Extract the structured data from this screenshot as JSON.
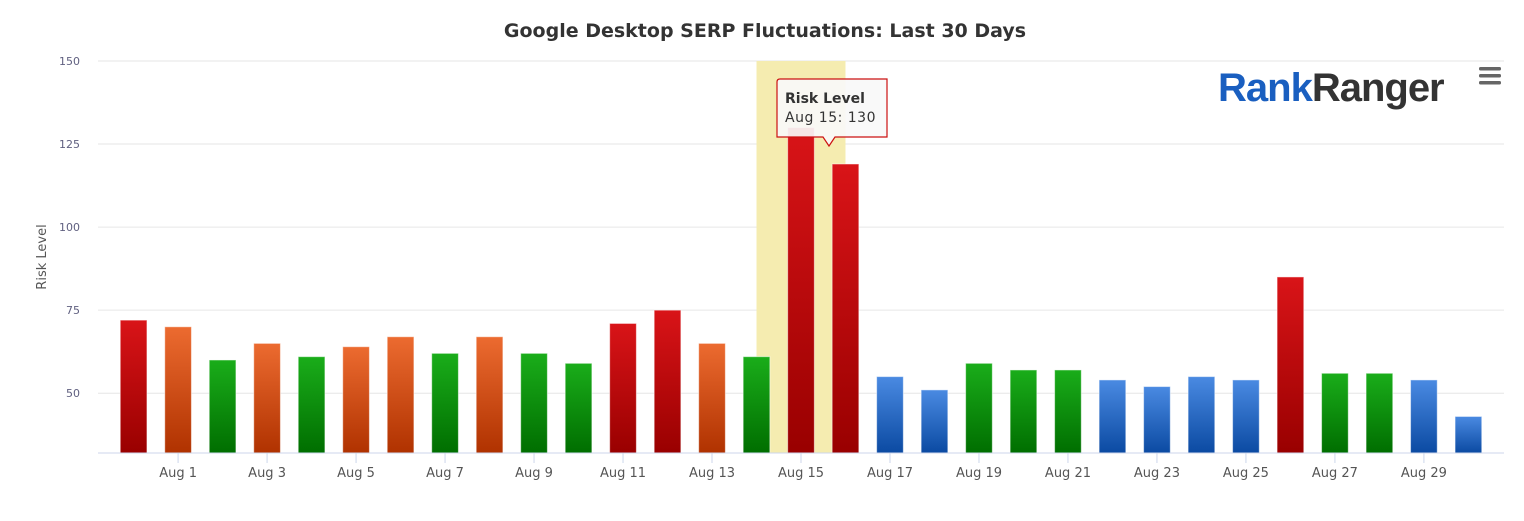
{
  "chart_data": {
    "type": "bar",
    "title": "Google Desktop SERP Fluctuations: Last 30 Days",
    "ylabel": "Risk Level",
    "xlabel": "",
    "ylim": [
      32,
      150
    ],
    "yticks": [
      50,
      75,
      100,
      125,
      150
    ],
    "grid": true,
    "categories": [
      "Jul 31",
      "Aug 1",
      "Aug 2",
      "Aug 3",
      "Aug 4",
      "Aug 5",
      "Aug 6",
      "Aug 7",
      "Aug 8",
      "Aug 9",
      "Aug 10",
      "Aug 11",
      "Aug 12",
      "Aug 13",
      "Aug 14",
      "Aug 15",
      "Aug 16",
      "Aug 17",
      "Aug 18",
      "Aug 19",
      "Aug 20",
      "Aug 21",
      "Aug 22",
      "Aug 23",
      "Aug 24",
      "Aug 25",
      "Aug 26",
      "Aug 27",
      "Aug 28",
      "Aug 29",
      "Aug 30"
    ],
    "xtick_labels": [
      "Aug 1",
      "Aug 3",
      "Aug 5",
      "Aug 7",
      "Aug 9",
      "Aug 11",
      "Aug 13",
      "Aug 15",
      "Aug 17",
      "Aug 19",
      "Aug 21",
      "Aug 23",
      "Aug 25",
      "Aug 27",
      "Aug 29"
    ],
    "values": [
      72,
      70,
      60,
      65,
      61,
      64,
      67,
      62,
      67,
      62,
      59,
      71,
      75,
      65,
      61,
      130,
      119,
      55,
      51,
      59,
      57,
      57,
      54,
      52,
      55,
      54,
      85,
      56,
      56,
      54,
      43
    ],
    "levels": [
      "red",
      "orange",
      "green",
      "orange",
      "green",
      "orange",
      "orange",
      "green",
      "orange",
      "green",
      "green",
      "red",
      "red",
      "orange",
      "green",
      "red",
      "red",
      "blue",
      "blue",
      "green",
      "green",
      "green",
      "blue",
      "blue",
      "blue",
      "blue",
      "red",
      "green",
      "green",
      "blue",
      "blue"
    ],
    "level_colors": {
      "red": [
        "#d91418",
        "#990000"
      ],
      "orange": [
        "#ec6b30",
        "#b03200"
      ],
      "green": [
        "#1aad1a",
        "#006e00"
      ],
      "blue": [
        "#4a8ae2",
        "#0b4aa2"
      ]
    },
    "highlight_color": "#f5ecb0",
    "legend": "none"
  },
  "tooltip": {
    "series": "Risk Level",
    "text": "Aug 15: 130",
    "index": 15,
    "border_color": "#cc1111"
  },
  "logo": {
    "part1": "Rank",
    "part2": "Ranger",
    "color1": "#1a5fc0",
    "color2": "#333333"
  },
  "menu": {
    "icon": "hamburger-menu-icon"
  }
}
